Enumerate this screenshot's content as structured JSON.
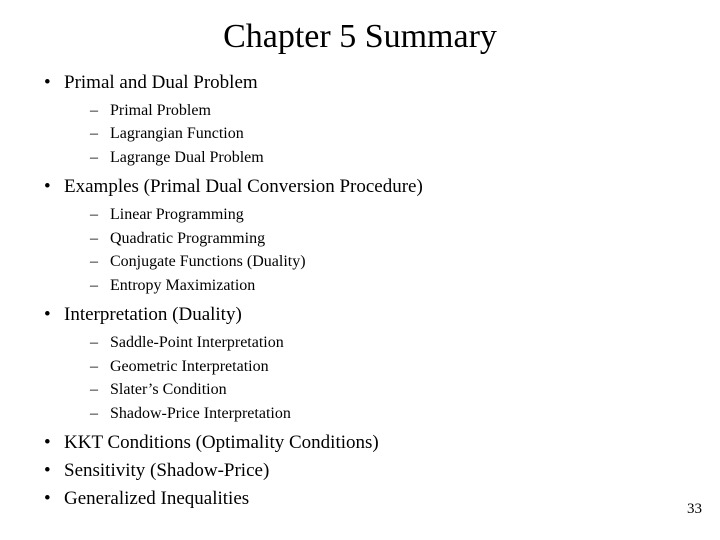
{
  "title": "Chapter 5 Summary",
  "page_number": "33",
  "bullets": [
    {
      "text": "Primal and Dual Problem",
      "children": [
        "Primal Problem",
        "Lagrangian Function",
        "Lagrange Dual Problem"
      ]
    },
    {
      "text": "Examples (Primal Dual Conversion Procedure)",
      "children": [
        "Linear Programming",
        "Quadratic Programming",
        "Conjugate Functions (Duality)",
        "Entropy Maximization"
      ]
    },
    {
      "text": "Interpretation (Duality)",
      "children": [
        "Saddle-Point Interpretation",
        "Geometric Interpretation",
        "Slater’s Condition",
        "Shadow-Price Interpretation"
      ]
    },
    {
      "text": "KKT Conditions (Optimality Conditions)",
      "children": []
    },
    {
      "text": "Sensitivity (Shadow-Price)",
      "children": []
    },
    {
      "text": "Generalized Inequalities",
      "children": []
    }
  ]
}
